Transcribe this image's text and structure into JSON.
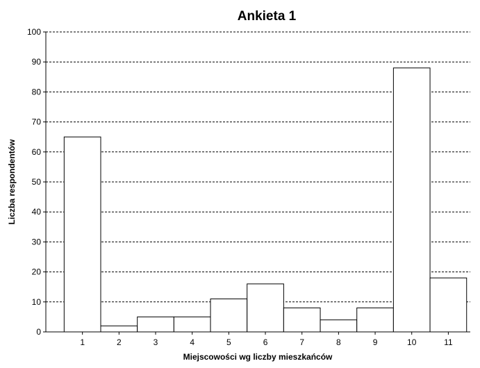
{
  "chart_data": {
    "type": "bar",
    "title": "Ankieta 1",
    "xlabel": "Miejscowości wg liczby mieszkańców",
    "ylabel": "Liczba respondentów",
    "categories": [
      "1",
      "2",
      "3",
      "4",
      "5",
      "6",
      "7",
      "8",
      "9",
      "10",
      "11"
    ],
    "values": [
      65,
      2,
      5,
      5,
      11,
      16,
      8,
      4,
      8,
      88,
      18
    ],
    "ylim": [
      0,
      100
    ],
    "yticks": [
      0,
      10,
      20,
      30,
      40,
      50,
      60,
      70,
      80,
      90,
      100
    ],
    "ytick_labels": [
      "0",
      "10",
      "20",
      "30",
      "40",
      "50",
      "60",
      "70",
      "80",
      "90",
      "100"
    ],
    "grid": "horizontal dashed",
    "colors": {
      "bar_fill": "#ffffff",
      "bar_stroke": "#000000",
      "grid": "#000000",
      "axis": "#000000"
    }
  }
}
